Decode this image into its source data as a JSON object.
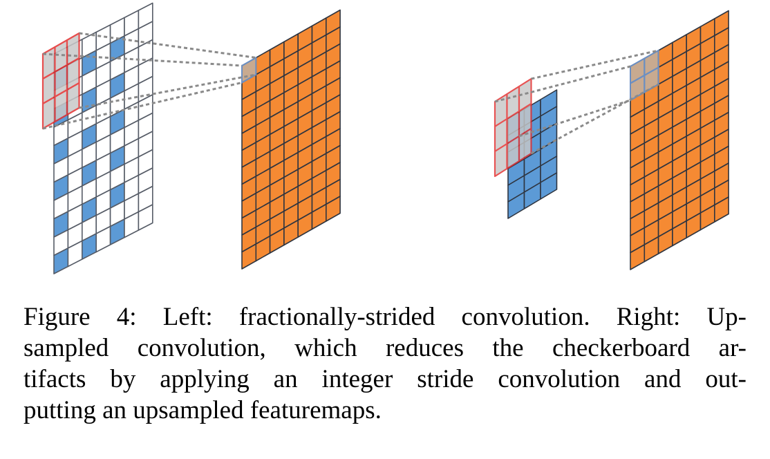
{
  "figure": {
    "colors": {
      "orange": "#f58a33",
      "blue": "#5c9ad6",
      "white": "#ffffff",
      "grid_line": "#2f3540",
      "kernel_red": "#e32e2e",
      "kernel_fill": "#c8c8c8",
      "dashed": "#8a8a8a",
      "output_selected": "#c8aa90",
      "output_selected_outline": "#6a8fc4"
    },
    "left_panel": {
      "input_grid": {
        "rows": 12,
        "cols": 7
      },
      "kernel": {
        "rows": 3,
        "cols": 3
      },
      "output_grid": {
        "rows": 12,
        "cols": 7
      }
    },
    "right_panel": {
      "input_grid": {
        "rows": 6,
        "cols": 3
      },
      "kernel": {
        "rows": 3,
        "cols": 3
      },
      "output_grid": {
        "rows": 12,
        "cols": 7
      }
    }
  },
  "caption": {
    "lines": [
      "Figure 4: Left: fractionally-strided convolution. Right: Up-",
      "sampled convolution, which reduces the checkerboard ar-",
      "tifacts by applying an integer stride convolution and out-",
      "putting an upsampled featuremaps."
    ]
  }
}
